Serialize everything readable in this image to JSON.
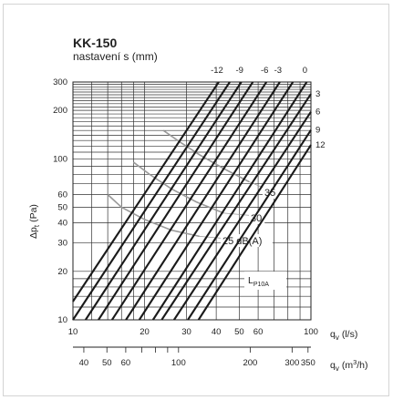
{
  "chart_data": {
    "type": "line",
    "title": "KK-150",
    "subtitle": "nastavení s (mm)",
    "x_scale": "log",
    "y_scale": "log",
    "xlim": [
      10,
      100
    ],
    "ylim": [
      10,
      300
    ],
    "xlabel_main": "q",
    "xlabel_main_sub": "v",
    "xlabel_main_unit": "(l/s)",
    "xlabel_secondary": "q",
    "xlabel_secondary_sub": "v",
    "xlabel_secondary_unit": "(m",
    "xlabel_secondary_sup": "3",
    "xlabel_secondary_unit_end": "/h)",
    "ylabel": "Δp",
    "ylabel_sub": "t",
    "ylabel_unit": "(Pa)",
    "x_ticks": [
      {
        "value": 10,
        "label": "10"
      },
      {
        "value": 20,
        "label": "20"
      },
      {
        "value": 30,
        "label": "30"
      },
      {
        "value": 40,
        "label": "40"
      },
      {
        "value": 50,
        "label": "50"
      },
      {
        "value": 60,
        "label": "60"
      },
      {
        "value": 100,
        "label": "100"
      }
    ],
    "x_secondary_ticks": [
      {
        "value": 40,
        "label": "40"
      },
      {
        "value": 50,
        "label": "50"
      },
      {
        "value": 60,
        "label": "60"
      },
      {
        "value": 100,
        "label": "100"
      },
      {
        "value": 200,
        "label": "200"
      },
      {
        "value": 300,
        "label": "300"
      },
      {
        "value": 350,
        "label": "350"
      }
    ],
    "y_ticks": [
      {
        "value": 10,
        "label": "10"
      },
      {
        "value": 20,
        "label": "20"
      },
      {
        "value": 30,
        "label": "30"
      },
      {
        "value": 40,
        "label": "40"
      },
      {
        "value": 50,
        "label": "50"
      },
      {
        "value": 60,
        "label": "60"
      },
      {
        "value": 100,
        "label": "100"
      },
      {
        "value": 200,
        "label": "200"
      },
      {
        "value": 300,
        "label": "300"
      }
    ],
    "series": [
      {
        "label": "-12",
        "label_pos": "top",
        "points": [
          [
            10,
            13
          ],
          [
            41,
            300
          ]
        ]
      },
      {
        "label": "",
        "points": [
          [
            10,
            10
          ],
          [
            45.6,
            300
          ]
        ]
      },
      {
        "label": "-9",
        "label_pos": "top",
        "points": [
          [
            11.3,
            10
          ],
          [
            51,
            300
          ]
        ]
      },
      {
        "label": "",
        "points": [
          [
            12.8,
            10
          ],
          [
            57,
            300
          ]
        ]
      },
      {
        "label": "-6",
        "label_pos": "top",
        "points": [
          [
            14.6,
            10
          ],
          [
            65,
            300
          ]
        ]
      },
      {
        "label": "-3",
        "label_pos": "top",
        "points": [
          [
            16.7,
            10
          ],
          [
            74,
            300
          ]
        ]
      },
      {
        "label": "",
        "points": [
          [
            19,
            10
          ],
          [
            84,
            300
          ]
        ]
      },
      {
        "label": "0",
        "label_pos": "top",
        "points": [
          [
            21.7,
            10
          ],
          [
            96,
            300
          ]
        ]
      },
      {
        "label": "3",
        "label_pos": "right",
        "points": [
          [
            23.6,
            10
          ],
          [
            100,
            253
          ]
        ]
      },
      {
        "label": "6",
        "label_pos": "right",
        "points": [
          [
            26.6,
            10
          ],
          [
            100,
            196
          ]
        ]
      },
      {
        "label": "9",
        "label_pos": "right",
        "points": [
          [
            30.4,
            10
          ],
          [
            100,
            151
          ]
        ]
      },
      {
        "label": "12",
        "label_pos": "right",
        "points": [
          [
            33.7,
            10
          ],
          [
            100,
            122
          ]
        ]
      }
    ],
    "sound_isolines": [
      {
        "label": "25 dB(A)",
        "points": [
          [
            14,
            60
          ],
          [
            16,
            50
          ],
          [
            20,
            42
          ],
          [
            26,
            36
          ],
          [
            34,
            33
          ]
        ]
      },
      {
        "label": "30",
        "points": [
          [
            18,
            95
          ],
          [
            21,
            80
          ],
          [
            26,
            65
          ],
          [
            33,
            54
          ],
          [
            43,
            46
          ]
        ]
      },
      {
        "label": "35",
        "points": [
          [
            24,
            150
          ],
          [
            28,
            128
          ],
          [
            34,
            106
          ],
          [
            43,
            87
          ],
          [
            55,
            72
          ]
        ]
      }
    ],
    "annotation": {
      "text": "L",
      "sub": "P10A"
    }
  }
}
